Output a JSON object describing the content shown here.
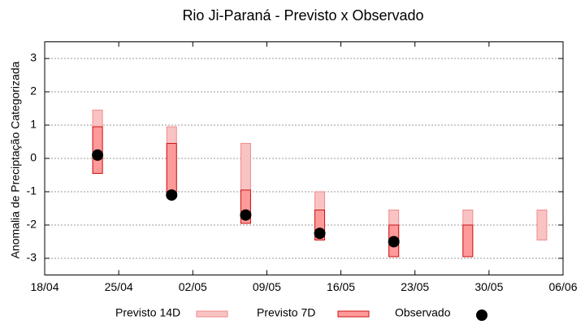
{
  "chart_data": {
    "type": "range-bar",
    "title": "Rio Ji-Paraná - Previsto x Observado",
    "y_label": "Anomalia de Preciptação Categorizada",
    "x": [
      "23/04",
      "30/04",
      "07/05",
      "14/05",
      "21/05",
      "28/05",
      "04/06"
    ],
    "xlim": [
      "18/04",
      "06/06"
    ],
    "xticks": [
      "18/04",
      "25/04",
      "02/05",
      "09/05",
      "16/05",
      "23/05",
      "30/05",
      "06/06"
    ],
    "ylim": [
      -3.5,
      3.5
    ],
    "yticks": [
      -3,
      -2,
      -1,
      0,
      1,
      2,
      3
    ],
    "grid": true,
    "legend": "bottom",
    "series": [
      {
        "name": "Previsto 14D",
        "color": "#f9c3c3",
        "edge": "#f08a8a",
        "values": [
          [
            -0.45,
            1.45
          ],
          [
            -1.05,
            0.95
          ],
          [
            -1.95,
            0.45
          ],
          [
            -2.45,
            -1.0
          ],
          [
            -2.95,
            -1.55
          ],
          [
            -2.95,
            -1.55
          ],
          [
            -2.45,
            -1.55
          ]
        ]
      },
      {
        "name": "Previsto 7D",
        "color": "#ff9a9a",
        "edge": "#cc1111",
        "values": [
          [
            -0.45,
            0.95
          ],
          [
            -1.05,
            0.45
          ],
          [
            -1.95,
            -0.95
          ],
          [
            -2.45,
            -1.55
          ],
          [
            -2.95,
            -2.0
          ],
          [
            -2.95,
            -2.0
          ],
          null
        ]
      },
      {
        "name": "Observado",
        "color": "#000000",
        "marker": "point",
        "values": [
          0.1,
          -1.1,
          -1.7,
          -2.25,
          -2.5,
          null,
          null
        ]
      }
    ]
  }
}
